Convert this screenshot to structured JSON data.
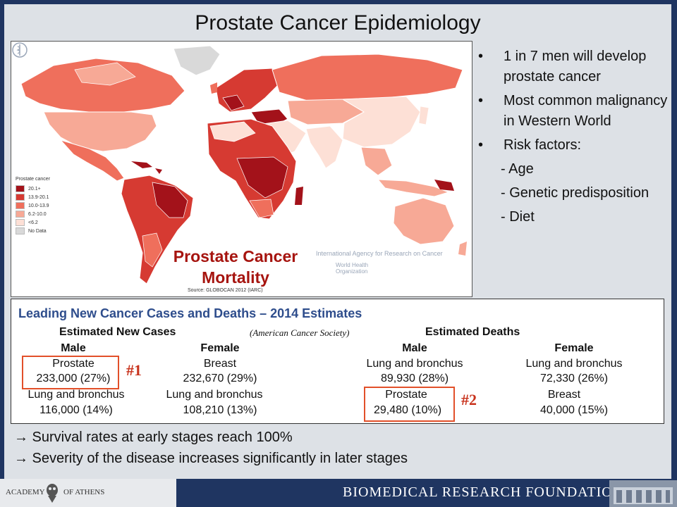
{
  "title": "Prostate Cancer Epidemiology",
  "map": {
    "legend_title": "Prostate cancer",
    "legend": [
      {
        "label": "20.1+",
        "color": "#a3121a"
      },
      {
        "label": "13.9-20.1",
        "color": "#d63a32"
      },
      {
        "label": "10.0-13.9",
        "color": "#ef6f5c"
      },
      {
        "label": "6.2-10.0",
        "color": "#f7a996"
      },
      {
        "label": "<6.2",
        "color": "#fde0d6"
      },
      {
        "label": "No Data",
        "color": "#d9d9d9"
      }
    ],
    "overlay_line1": "Prostate Cancer",
    "overlay_line2": "Mortality",
    "iarc": "International Agency for Research on Cancer",
    "who_line1": "World Health",
    "who_line2": "Organization",
    "source": "Source: GLOBOCAN 2012 (IARC)"
  },
  "bullets": {
    "marker": "•",
    "b1": "1 in 7 men will develop prostate cancer",
    "b2": "Most common malignancy in Western World",
    "b3": "Risk factors:",
    "s1": "- Age",
    "s2": "- Genetic predisposition",
    "s3": "- Diet"
  },
  "table": {
    "title": "Leading New Cancer Cases and Deaths – 2014 Estimates",
    "new_cases": "Estimated New Cases",
    "source_note": "(American Cancer Society)",
    "deaths": "Estimated Deaths",
    "male": "Male",
    "female": "Female",
    "nc_male_1_name": "Prostate",
    "nc_male_1_val": "233,000 (27%)",
    "nc_male_2_name": "Lung and bronchus",
    "nc_male_2_val": "116,000 (14%)",
    "nc_female_1_name": "Breast",
    "nc_female_1_val": "232,670 (29%)",
    "nc_female_2_name": "Lung and bronchus",
    "nc_female_2_val": "108,210 (13%)",
    "d_male_1_name": "Lung and bronchus",
    "d_male_1_val": "89,930 (28%)",
    "d_male_2_name": "Prostate",
    "d_male_2_val": "29,480 (10%)",
    "d_female_1_name": "Lung and bronchus",
    "d_female_1_val": "72,330 (26%)",
    "d_female_2_name": "Breast",
    "d_female_2_val": "40,000 (15%)",
    "rank1": "#1",
    "rank2": "#2"
  },
  "notes": {
    "n1": "→ Survival rates at early stages reach 100%",
    "n2": "→ Severity of the disease increases significantly in later stages"
  },
  "footer": {
    "academy_left": "ACADEMY",
    "academy_right": "OF ATHENS",
    "foundation": "BIOMEDICAL RESEARCH FOUNDATION"
  }
}
